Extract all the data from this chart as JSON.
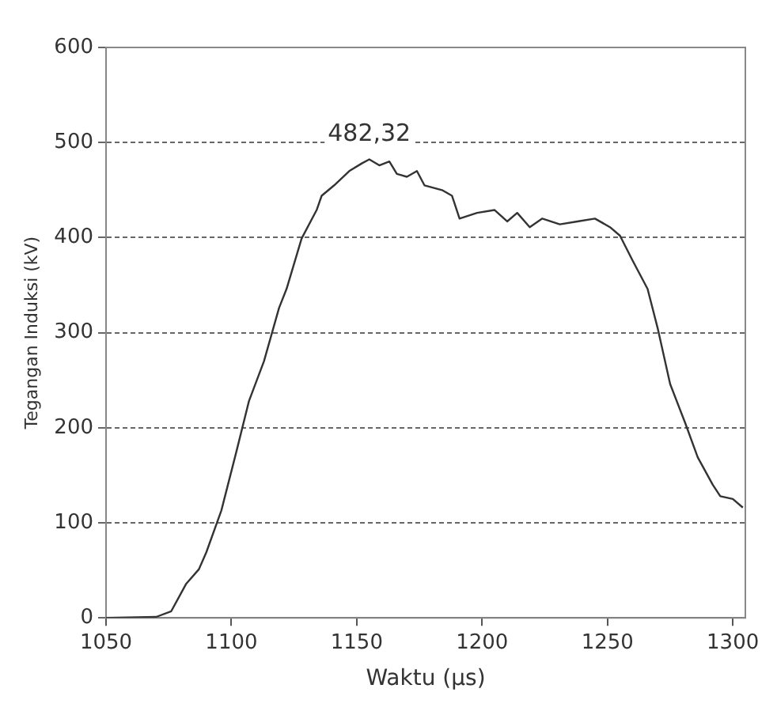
{
  "chart_data": {
    "type": "line",
    "xlabel": "Waktu (μs)",
    "ylabel": "Tegangan Induksi (kV)",
    "x": [
      1050,
      1070,
      1076,
      1082,
      1087,
      1090,
      1096,
      1102,
      1107,
      1113,
      1119,
      1122,
      1128,
      1134,
      1136,
      1141,
      1147,
      1152,
      1155,
      1159,
      1163,
      1166,
      1170,
      1174,
      1177,
      1184,
      1188,
      1191,
      1198,
      1205,
      1210,
      1214,
      1219,
      1224,
      1231,
      1238,
      1245,
      1251,
      1255,
      1260,
      1266,
      1270,
      1275,
      1281,
      1286,
      1292,
      1295,
      1300,
      1304
    ],
    "series": [
      {
        "color": "#333333",
        "values": [
          0,
          1,
          7,
          36,
          51,
          69,
          113,
          175,
          228,
          270,
          326,
          346,
          399,
          429,
          444,
          455,
          470,
          478,
          482.32,
          476,
          480,
          467,
          464,
          470,
          455,
          450,
          444,
          420,
          426,
          429,
          417,
          426,
          411,
          420,
          414,
          417,
          420,
          411,
          402,
          376,
          346,
          305,
          246,
          205,
          169,
          140,
          128,
          125,
          116
        ]
      }
    ],
    "xlim": [
      1050,
      1305
    ],
    "xticks": [
      1050,
      1100,
      1150,
      1200,
      1250,
      1300
    ],
    "ylim": [
      0,
      600
    ],
    "yticks": [
      0,
      100,
      200,
      300,
      400,
      500,
      600
    ],
    "grid": "y",
    "legend": false,
    "marker": "none",
    "line_style": "solid",
    "annotations": [
      {
        "text": "482,32",
        "x": 1155,
        "y": 482.32
      }
    ]
  }
}
